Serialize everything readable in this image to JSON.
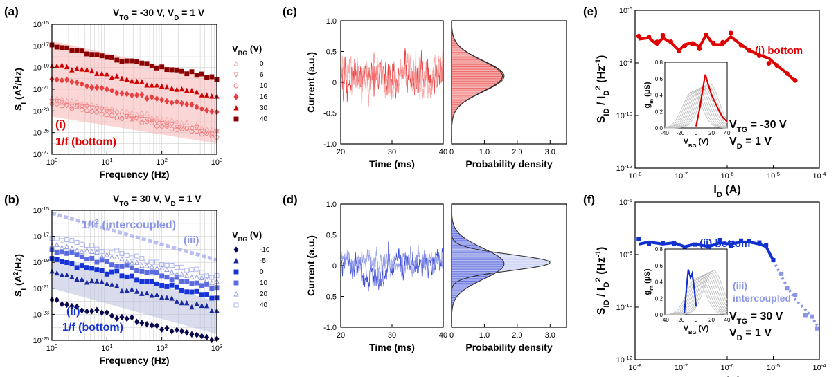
{
  "chart_data": [
    {
      "id": "a",
      "panel_label": "(a)",
      "type": "scatter",
      "conditions": [
        "V_TG = -30 V,",
        "V_D = 1 V"
      ],
      "xlabel": "Frequency (Hz)",
      "ylabel": "S_I (A^2/Hz)",
      "xscale": "log",
      "yscale": "log",
      "xlim": [
        1,
        1000
      ],
      "ylim": [
        1e-27,
        1e-15
      ],
      "xticks": [
        "10^0",
        "10^1",
        "10^2",
        "10^3"
      ],
      "yticks": [
        "10^-27",
        "10^-25",
        "10^-23",
        "10^-21",
        "10^-19",
        "10^-17",
        "10^-15"
      ],
      "legend_title": "V_BG (V)",
      "legend_position": "right",
      "annotations": [
        "(i)",
        "1/f (bottom)"
      ],
      "series": [
        {
          "name": "0",
          "color": "#f4a6a6",
          "marker": "triangle-open",
          "start": 2e-22,
          "slope": -1
        },
        {
          "name": "6",
          "color": "#f08080",
          "marker": "triangle-down-open",
          "start": 8e-23,
          "slope": -1
        },
        {
          "name": "10",
          "color": "#ee7777",
          "marker": "circle-open",
          "start": 5e-23,
          "slope": -1
        },
        {
          "name": "16",
          "color": "#e84040",
          "marker": "diamond",
          "start": 1e-20,
          "slope": -1
        },
        {
          "name": "30",
          "color": "#d00000",
          "marker": "triangle",
          "start": 2e-19,
          "slope": -1
        },
        {
          "name": "40",
          "color": "#8b0000",
          "marker": "square",
          "start": 1e-17,
          "slope": -1
        }
      ],
      "band": {
        "upper": [
          3e-17,
          1e-20
        ],
        "lower": [
          3e-24,
          1e-26
        ],
        "color": "#f7b5b5"
      }
    },
    {
      "id": "b",
      "panel_label": "(b)",
      "type": "scatter",
      "conditions": [
        "V_TG = 30 V,",
        "V_D = 1 V"
      ],
      "xlabel": "Frequency (Hz)",
      "ylabel": "S_I (A^2/Hz)",
      "xscale": "log",
      "yscale": "log",
      "xlim": [
        1,
        1000
      ],
      "ylim": [
        1e-25,
        1e-15
      ],
      "xticks": [
        "10^0",
        "10^1",
        "10^2",
        "10^3"
      ],
      "yticks": [
        "10^-25",
        "10^-23",
        "10^-21",
        "10^-19",
        "10^-17",
        "10^-15"
      ],
      "legend_title": "V_BG (V)",
      "legend_position": "right",
      "annotations": [
        "1/f^2 (intercoupled)",
        "(iii)",
        "(ii)",
        "1/f (bottom)"
      ],
      "series": [
        {
          "name": "-10",
          "color": "#0a0a50",
          "marker": "diamond",
          "start": 1e-22,
          "slope": -1
        },
        {
          "name": "-5",
          "color": "#1a2aa0",
          "marker": "triangle",
          "start": 2e-20,
          "slope": -1
        },
        {
          "name": "0",
          "color": "#1533d6",
          "marker": "square",
          "start": 2e-19,
          "slope": -1
        },
        {
          "name": "10",
          "color": "#5a6be0",
          "marker": "square",
          "start": 1e-18,
          "slope": -1
        },
        {
          "name": "20",
          "color": "#8c96e6",
          "marker": "triangle-open",
          "start": 3e-18,
          "slope": -1
        },
        {
          "name": "40",
          "color": "#a8b0ee",
          "marker": "square-open",
          "start": 8e-18,
          "slope": -1
        }
      ]
    },
    {
      "id": "c",
      "panel_label": "(c)",
      "type": "line",
      "xlabel": "Time (ms)",
      "ylabel": "Current (a.u.)",
      "xlim": [
        20,
        40
      ],
      "ylim": [
        -1.0,
        1.0
      ],
      "xticks": [
        "20",
        "30",
        "40"
      ],
      "yticks": [
        "-1.0",
        "-0.5",
        "0",
        "0.5",
        "1.0"
      ],
      "hist_xlabel": "Probability density",
      "hist_xticks": [
        "0",
        "1.0",
        "2.0",
        "3.0"
      ],
      "hist_xlim": [
        0,
        3.5
      ],
      "color": "#e83030",
      "distribution": {
        "mean": 0.1,
        "sd": 0.25,
        "peak": 1.6
      }
    },
    {
      "id": "d",
      "panel_label": "(d)",
      "type": "line",
      "xlabel": "Time (ms)",
      "ylabel": "Current (a.u.)",
      "xlim": [
        20,
        40
      ],
      "ylim": [
        -1.0,
        1.0
      ],
      "xticks": [
        "20",
        "30",
        "40"
      ],
      "yticks": [
        "-1.0",
        "-0.5",
        "0",
        "0.5",
        "1.0"
      ],
      "hist_xlabel": "Probability density",
      "hist_xticks": [
        "0",
        "1.0",
        "2.0",
        "3.0"
      ],
      "hist_xlim": [
        0,
        3.5
      ],
      "color": "#2a3ad6",
      "distribution": {
        "mean": 0.05,
        "sd": 0.13,
        "peak": 3.0,
        "second_peak": 1.6
      }
    },
    {
      "id": "e",
      "panel_label": "(e)",
      "type": "line",
      "xlabel": "I_D (A)",
      "ylabel": "S_ID / I_D^2 (Hz^-1)",
      "xscale": "log",
      "yscale": "log",
      "xlim": [
        1e-08,
        0.0001
      ],
      "ylim": [
        1e-12,
        1e-06
      ],
      "xticks": [
        "10^-8",
        "10^-7",
        "10^-6",
        "10^-5",
        "10^-4"
      ],
      "yticks": [
        "10^-12",
        "10^-10",
        "10^-8",
        "10^-6"
      ],
      "series_label": "(i) bottom",
      "conditions": [
        "V_TG = -30 V",
        "V_D = 1 V"
      ],
      "color": "#e00000",
      "x": [
        1.2e-08,
        2e-08,
        3e-08,
        4e-08,
        6e-08,
        9e-08,
        1.2e-07,
        1.8e-07,
        2.5e-07,
        3.5e-07,
        5e-07,
        8e-07,
        1.2e-06,
        2e-06,
        3e-06,
        5e-06,
        8e-06,
        1.2e-05,
        2e-05,
        3e-05
      ],
      "y": [
        8e-08,
        9e-08,
        5e-08,
        9e-08,
        6e-08,
        3e-08,
        5e-08,
        6e-08,
        4e-08,
        1.2e-07,
        5e-08,
        5e-08,
        1e-07,
        5e-08,
        3e-08,
        2e-08,
        1.5e-08,
        8e-09,
        4e-09,
        2e-09
      ],
      "inset": {
        "xlabel": "V_BG (V)",
        "ylabel": "g_m (μS)",
        "xticks": [
          "-40",
          "-20",
          "0",
          "20",
          "40"
        ],
        "yticks": [
          "0.0",
          "0.2",
          "0.4",
          "0.6",
          "0.8"
        ],
        "xlim": [
          -40,
          40
        ],
        "ylim": [
          0,
          0.8
        ],
        "highlight_x": [
          0,
          5,
          10,
          12,
          15,
          20,
          25,
          30,
          35,
          40
        ],
        "highlight_y": [
          0.02,
          0.25,
          0.55,
          0.65,
          0.55,
          0.4,
          0.3,
          0.2,
          0.12,
          0.08
        ],
        "highlight_color": "#e00000"
      }
    },
    {
      "id": "f",
      "panel_label": "(f)",
      "type": "line",
      "xlabel": "I_D (A)",
      "ylabel": "S_ID / I_D^2 (Hz^-1)",
      "xscale": "log",
      "yscale": "log",
      "xlim": [
        1e-08,
        0.0001
      ],
      "ylim": [
        1e-12,
        1e-06
      ],
      "xticks": [
        "10^-8",
        "10^-7",
        "10^-6",
        "10^-5",
        "10^-4"
      ],
      "yticks": [
        "10^-12",
        "10^-10",
        "10^-8",
        "10^-6"
      ],
      "series_labels": [
        "(ii) bottom",
        "(iii) intercoupled"
      ],
      "conditions": [
        "V_TG = 30 V",
        "V_D = 1 V"
      ],
      "colors": [
        "#1030d0",
        "#8c96e6"
      ],
      "x": [
        1.2e-08,
        2e-08,
        4e-08,
        7e-08,
        1.2e-07,
        2e-07,
        4e-07,
        7e-07,
        1.2e-06,
        2e-06,
        3e-06,
        5e-06,
        7e-06,
        1e-05,
        1.5e-05,
        2e-05,
        3e-05,
        5e-05,
        7e-05,
        9e-05
      ],
      "y": [
        2.5e-08,
        3e-08,
        2.5e-08,
        2.8e-08,
        2e-08,
        2.5e-08,
        2e-08,
        2.8e-08,
        2.5e-08,
        3e-08,
        3e-08,
        2.5e-08,
        2e-08,
        6e-09,
        1.5e-09,
        6e-10,
        2e-10,
        8e-11,
        4e-11,
        2e-11
      ],
      "inset": {
        "xlabel": "V_BG (V)",
        "ylabel": "g_m (μS)",
        "xticks": [
          "-40",
          "-20",
          "0",
          "20",
          "40"
        ],
        "yticks": [
          "0.0",
          "0.2",
          "0.4",
          "0.6",
          "0.8"
        ],
        "xlim": [
          -40,
          40
        ],
        "ylim": [
          0,
          0.8
        ],
        "highlight_x": [
          -15,
          -12,
          -10,
          -7,
          -5,
          -2,
          0
        ],
        "highlight_y": [
          0.02,
          0.35,
          0.55,
          0.45,
          0.5,
          0.3,
          0.1
        ],
        "highlight_color": "#1030d0"
      }
    }
  ]
}
